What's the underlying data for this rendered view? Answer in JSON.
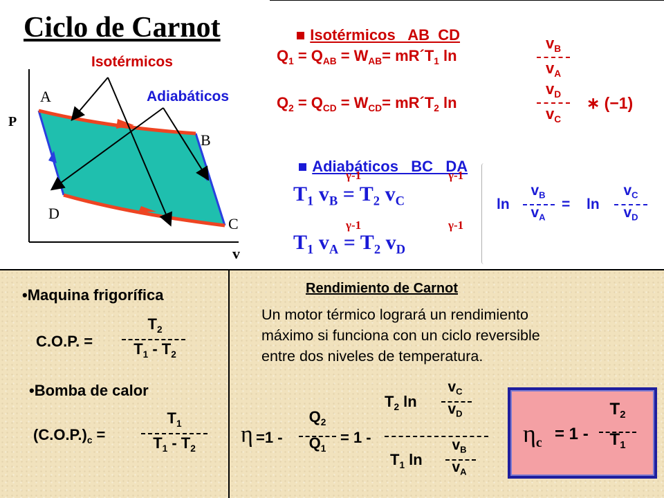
{
  "title": "Ciclo de Carnot",
  "diagram": {
    "label_isotermicos": "Isotérmicos",
    "label_adiabaticos": "Adiabáticos",
    "axis_p": "P",
    "axis_v": "v",
    "point_a": "A",
    "point_b": "B",
    "point_c": "C",
    "point_d": "D",
    "fill_color": "#1fbfae",
    "isotherm_color": "#ee4422",
    "adiabat_color": "#2a3fe0"
  },
  "isothermal": {
    "heading": "Isotérmicos   AB  CD",
    "q1_lhs": "Q",
    "q1_idx": "1",
    "q1_eq": " = Q",
    "q1_ab": "AB",
    "q1_eq2": " = W",
    "q1_ab2": "AB",
    "q1_rhs": "= mR´T",
    "q1_t": "1",
    "q1_ln": " ln",
    "q1_num": "v",
    "q1_num_sub": "B",
    "q1_den": "v",
    "q1_den_sub": "A",
    "q2_lhs": "Q",
    "q2_idx": "2",
    "q2_eq": " = Q",
    "q2_cd": "CD",
    "q2_eq2": " = W",
    "q2_cd2": "CD",
    "q2_rhs": "= mR´T",
    "q2_t": "2",
    "q2_ln": " ln",
    "q2_num": "v",
    "q2_num_sub": "D",
    "q2_den": "v",
    "q2_den_sub": "C",
    "q2_factor": "∗ (−1)"
  },
  "adiabatic": {
    "heading": "Adiabáticos   BC   DA",
    "exp": "γ-1",
    "eq1_left": "T",
    "eq1_left_idx": "1",
    "eq1_v": " v",
    "eq1_v_sub": "B",
    "eq1_mid": " = T",
    "eq1_right_idx": "2",
    "eq1_v2": " v",
    "eq1_v2_sub": "C",
    "eq2_left": "T",
    "eq2_left_idx": "1",
    "eq2_v": " v",
    "eq2_v_sub": "A",
    "eq2_mid": " = T",
    "eq2_right_idx": "2",
    "eq2_v2": " v",
    "eq2_v2_sub": "D",
    "ln_left": "ln",
    "ln_left_num": "v",
    "ln_left_num_sub": "B",
    "ln_left_den": "v",
    "ln_left_den_sub": "A",
    "ln_eq": "=",
    "ln_right": "ln",
    "ln_right_num": "v",
    "ln_right_num_sub": "C",
    "ln_right_den": "v",
    "ln_right_den_sub": "D"
  },
  "fridge": {
    "heading": "•Maquina frigorífica",
    "lhs": "C.O.P. =",
    "num": "T",
    "num_sub": "2",
    "den_a": "T",
    "den_a_sub": "1",
    "den_op": " - ",
    "den_b": "T",
    "den_b_sub": "2"
  },
  "heatpump": {
    "heading": "•Bomba de calor",
    "lhs": "(C.O.P.)",
    "lhs_sub": "c",
    "lhs_eq": " =",
    "num": "T",
    "num_sub": "1",
    "den_a": "T",
    "den_a_sub": "1",
    "den_op": " - ",
    "den_b": "T",
    "den_b_sub": "2"
  },
  "efficiency": {
    "heading": "Rendimiento de Carnot",
    "text_line1": "Un motor térmico logrará un rendimiento",
    "text_line2": "máximo si funciona con un ciclo reversible",
    "text_line3": "entre dos niveles de temperatura.",
    "eta": "η",
    "eq_start": "=1 -",
    "q_num": "Q",
    "q_num_sub": "2",
    "q_den": "Q",
    "q_den_sub": "1",
    "eq_mid": "= 1 -",
    "big_num_t": "T",
    "big_num_t_sub": "2",
    "big_num_ln": " ln",
    "big_num_v": "v",
    "big_num_v_sub": "C",
    "big_num_v2": "v",
    "big_num_v2_sub": "D",
    "big_den_t": "T",
    "big_den_t_sub": "1",
    "big_den_ln": " ln",
    "big_den_v": "v",
    "big_den_v_sub": "B",
    "big_den_v2": "v",
    "big_den_v2_sub": "A",
    "box_eta": "η",
    "box_eta_sub": "c",
    "box_eq": "= 1 -",
    "box_num": "T",
    "box_num_sub": "2",
    "box_den": "T",
    "box_den_sub": "1"
  }
}
